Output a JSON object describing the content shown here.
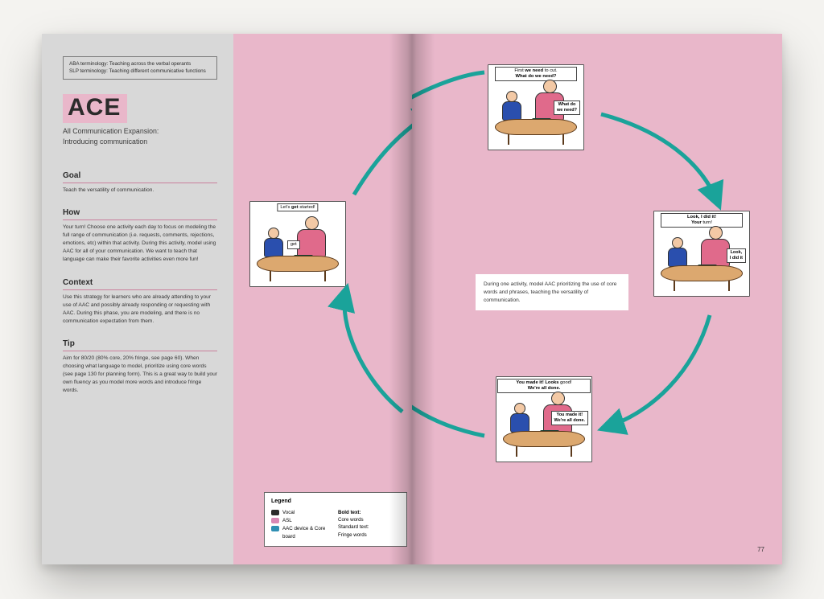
{
  "colors": {
    "page_bg": "#f4f3f0",
    "gray_panel": "#d8d8d8",
    "pink_panel": "#e9b7ca",
    "arrow": "#1aa39a",
    "rule": "#c97f9c",
    "text": "#2b2b2b",
    "legend_vocal": "#2b2b2b",
    "legend_asl": "#d889b5",
    "legend_aac": "#2f8fb3"
  },
  "terminology": {
    "line1": "ABA terminology: Teaching across the verbal operants",
    "line2": "SLP terminology: Teaching different communicative functions"
  },
  "title": "ACE",
  "subtitle": "All Communication Expansion:\nIntroducing communication",
  "sections": {
    "goal": {
      "head": "Goal",
      "body": "Teach the versatility of communication."
    },
    "how": {
      "head": "How",
      "body": "Your turn! Choose one activity each day to focus on modeling the full range of communication (i.e. requests, comments, rejections, emotions, etc) within that activity. During this activity, model using AAC for all of your communication. We want to teach that language can make their favorite activities even more fun!"
    },
    "context": {
      "head": "Context",
      "body": "Use this strategy for learners who are already attending to your use of AAC and possibly already responding or requesting with AAC. During this phase, you are modeling, and there is no communication expectation from them."
    },
    "tip": {
      "head": "Tip",
      "body": "Aim for 80/20 (80% core, 20% fringe, see page 60). When choosing what language to model, prioritize using core words (see page 130 for planning form). This is a great way to build your own fluency as you model more words and introduce fringe words."
    }
  },
  "legend": {
    "title": "Legend",
    "left": [
      {
        "swatch": "#2b2b2b",
        "label": "Vocal"
      },
      {
        "swatch": "#d889b5",
        "label": "ASL"
      },
      {
        "swatch": "#2f8fb3",
        "label": "AAC device & Core board"
      }
    ],
    "right_title": "Bold text:",
    "right_1": "Core words",
    "right_2_title": "Standard text:",
    "right_2": "Fringe words"
  },
  "center_note": "During one activity, model AAC prioritizing the use of core words and phrases, teaching the versatility of communication.",
  "scenes": {
    "s1": {
      "caption_html": "Let's <b>get</b> started!",
      "speech": "get"
    },
    "s2": {
      "caption_html": "First <b>we need</b> to cut.<br><b>What do we need?</b>",
      "speech_html": "<b>What do</b><br><b>we need?</b>"
    },
    "s3": {
      "caption_html": "<b>Look, I did it!</b><br><b>Your</b> turn!",
      "speech_html": "<b>Look,</b><br><b>I did it</b>"
    },
    "s4": {
      "caption_html": "<b>You made it! Looks</b> good!<br><b>We're all done.</b>",
      "speech_html": "<b>You made it!</b><br><b>We're all done.</b>"
    }
  },
  "arrows": {
    "stroke": "#1aa39a",
    "stroke_width": 5,
    "paths": [
      "M 210,130 C 270,70 360,50 420,80",
      "M 620,140 C 680,190 710,260 690,320",
      "M 610,500 C 530,560 420,570 350,530",
      "M 160,470 C 110,400 100,310 140,250"
    ]
  },
  "page_number": "77"
}
